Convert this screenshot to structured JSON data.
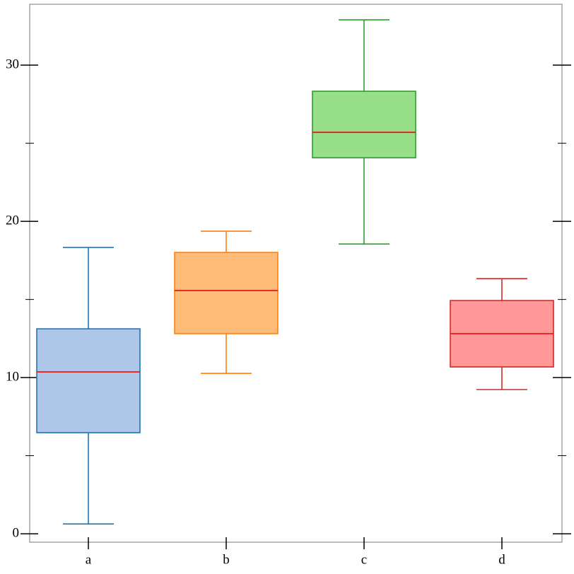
{
  "chart_data": {
    "type": "box",
    "categories": [
      "a",
      "b",
      "c",
      "d"
    ],
    "boxes": [
      {
        "low": 0.63,
        "q1": 6.47,
        "median": 10.36,
        "q3": 13.12,
        "high": 18.33,
        "color": "#1f77b4",
        "fill": "#aec7e8"
      },
      {
        "low": 10.27,
        "q1": 12.81,
        "median": 15.57,
        "q3": 18.01,
        "high": 19.37,
        "color": "#ff7f0e",
        "fill": "#ffbb78"
      },
      {
        "low": 18.55,
        "q1": 24.07,
        "median": 25.7,
        "q3": 28.33,
        "high": 32.9,
        "color": "#2ca02c",
        "fill": "#98df8a"
      },
      {
        "low": 9.23,
        "q1": 10.68,
        "median": 12.81,
        "q3": 14.93,
        "high": 16.33,
        "color": "#d62728",
        "fill": "#ff9896"
      }
    ],
    "median_color": "#e41a1c",
    "ylim": [
      -0.54,
      33.9
    ],
    "yticks": [
      0,
      10,
      20,
      30
    ],
    "minor_yticks": [
      5,
      15,
      25
    ]
  }
}
